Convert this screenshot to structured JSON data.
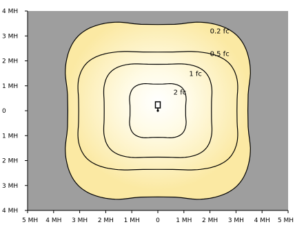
{
  "colors": {
    "background": "#9e9e9e",
    "outer_zone": "#fbe9a3",
    "center_glow": "#ffffff",
    "contour_line": "#000000"
  },
  "chart_data": {
    "type": "isoline",
    "x_ticks": [
      "5 MH",
      "4 MH",
      "3 MH",
      "2 MH",
      "1 MH",
      "0",
      "1 MH",
      "2 MH",
      "3 MH",
      "4 MH",
      "5 MH"
    ],
    "y_ticks": [
      "4 MH",
      "3 MH",
      "2 MH",
      "1 MH",
      "0",
      "1 MH",
      "2 MH",
      "3 MH",
      "4 MH"
    ],
    "xlim": [
      -5,
      5
    ],
    "ylim": [
      -4,
      4
    ],
    "grid": false,
    "fixture_position": [
      0,
      0
    ],
    "contours": [
      {
        "label": "0.2 fc",
        "half_width": 3.6,
        "half_height": 3.6,
        "label_at": [
          2.0,
          3.1
        ]
      },
      {
        "label": "0.5 fc",
        "half_width": 3.1,
        "half_height": 2.4,
        "label_at": [
          2.0,
          2.2
        ]
      },
      {
        "label": "1 fc",
        "half_width": 2.1,
        "half_height": 1.9,
        "label_at": [
          1.2,
          1.4
        ]
      },
      {
        "label": "2 fc",
        "half_width": 1.1,
        "half_height": 1.1,
        "label_at": [
          0.6,
          0.65
        ]
      }
    ]
  }
}
